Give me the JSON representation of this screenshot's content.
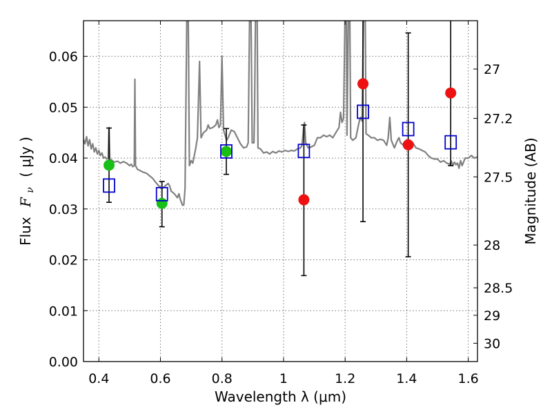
{
  "chart_data": {
    "type": "scatter",
    "xlabel": "Wavelength  λ (μm)",
    "ylabel": "Flux  F_ν  ( μJy )",
    "ylabel_prefix": "Flux",
    "ylabel_symbol": "F",
    "ylabel_subscript": "ν",
    "ylabel_unit": "( μJy )",
    "y2label": "Magnitude (AB)",
    "xlim": [
      0.35,
      1.63
    ],
    "ylim": [
      0.0,
      0.067
    ],
    "grid": true,
    "xticks": [
      0.4,
      0.6,
      0.8,
      1.0,
      1.2,
      1.4,
      1.6
    ],
    "xtick_labels": [
      "0.4",
      "0.6",
      "0.8",
      "1",
      "1.2",
      "1.4",
      "1.6"
    ],
    "yticks": [
      0.0,
      0.01,
      0.02,
      0.03,
      0.04,
      0.05,
      0.06
    ],
    "ytick_labels": [
      "0.00",
      "0.01",
      "0.02",
      "0.03",
      "0.04",
      "0.05",
      "0.06"
    ],
    "y2ticks": [
      {
        "label": "27",
        "flux": 0.0575
      },
      {
        "label": "27.2",
        "flux": 0.0478
      },
      {
        "label": "27.5",
        "flux": 0.0363
      },
      {
        "label": "28",
        "flux": 0.0229
      },
      {
        "label": "28.5",
        "flux": 0.0145
      },
      {
        "label": "29",
        "flux": 0.0091
      },
      {
        "label": "30",
        "flux": 0.0036
      }
    ],
    "model_spectrum": {
      "name": "model SED",
      "color": "#808080",
      "points": [
        [
          0.35,
          0.0437
        ],
        [
          0.355,
          0.0428
        ],
        [
          0.36,
          0.0442
        ],
        [
          0.365,
          0.0424
        ],
        [
          0.37,
          0.0436
        ],
        [
          0.375,
          0.0418
        ],
        [
          0.38,
          0.0428
        ],
        [
          0.385,
          0.0412
        ],
        [
          0.39,
          0.042
        ],
        [
          0.395,
          0.0408
        ],
        [
          0.4,
          0.0415
        ],
        [
          0.405,
          0.0405
        ],
        [
          0.41,
          0.041
        ],
        [
          0.415,
          0.04
        ],
        [
          0.42,
          0.0402
        ],
        [
          0.425,
          0.0398
        ],
        [
          0.43,
          0.04
        ],
        [
          0.433,
          0.046
        ],
        [
          0.436,
          0.0395
        ],
        [
          0.44,
          0.0397
        ],
        [
          0.45,
          0.0392
        ],
        [
          0.46,
          0.0394
        ],
        [
          0.47,
          0.039
        ],
        [
          0.48,
          0.0393
        ],
        [
          0.49,
          0.039
        ],
        [
          0.5,
          0.0385
        ],
        [
          0.505,
          0.0388
        ],
        [
          0.51,
          0.0383
        ],
        [
          0.515,
          0.0385
        ],
        [
          0.517,
          0.0555
        ],
        [
          0.519,
          0.0385
        ],
        [
          0.525,
          0.0378
        ],
        [
          0.535,
          0.0375
        ],
        [
          0.545,
          0.0372
        ],
        [
          0.555,
          0.037
        ],
        [
          0.565,
          0.0365
        ],
        [
          0.575,
          0.036
        ],
        [
          0.585,
          0.0352
        ],
        [
          0.595,
          0.0345
        ],
        [
          0.605,
          0.034
        ],
        [
          0.615,
          0.0345
        ],
        [
          0.625,
          0.035
        ],
        [
          0.63,
          0.0345
        ],
        [
          0.635,
          0.0335
        ],
        [
          0.645,
          0.033
        ],
        [
          0.655,
          0.0322
        ],
        [
          0.66,
          0.033
        ],
        [
          0.665,
          0.0318
        ],
        [
          0.672,
          0.0307
        ],
        [
          0.676,
          0.0308
        ],
        [
          0.68,
          0.034
        ],
        [
          0.686,
          0.07
        ],
        [
          0.69,
          0.07
        ],
        [
          0.694,
          0.0385
        ],
        [
          0.7,
          0.0395
        ],
        [
          0.705,
          0.039
        ],
        [
          0.71,
          0.0405
        ],
        [
          0.715,
          0.042
        ],
        [
          0.72,
          0.044
        ],
        [
          0.727,
          0.059
        ],
        [
          0.732,
          0.044
        ],
        [
          0.74,
          0.045
        ],
        [
          0.75,
          0.0455
        ],
        [
          0.755,
          0.0465
        ],
        [
          0.76,
          0.0458
        ],
        [
          0.77,
          0.046
        ],
        [
          0.78,
          0.0465
        ],
        [
          0.785,
          0.0475
        ],
        [
          0.79,
          0.046
        ],
        [
          0.795,
          0.0465
        ],
        [
          0.8,
          0.06
        ],
        [
          0.805,
          0.0455
        ],
        [
          0.81,
          0.0445
        ],
        [
          0.815,
          0.0435
        ],
        [
          0.82,
          0.044
        ],
        [
          0.83,
          0.0455
        ],
        [
          0.84,
          0.0452
        ],
        [
          0.85,
          0.044
        ],
        [
          0.86,
          0.0428
        ],
        [
          0.87,
          0.042
        ],
        [
          0.88,
          0.0422
        ],
        [
          0.885,
          0.043
        ],
        [
          0.89,
          0.07
        ],
        [
          0.894,
          0.07
        ],
        [
          0.898,
          0.043
        ],
        [
          0.904,
          0.043
        ],
        [
          0.906,
          0.05
        ],
        [
          0.909,
          0.07
        ],
        [
          0.914,
          0.07
        ],
        [
          0.917,
          0.042
        ],
        [
          0.925,
          0.0418
        ],
        [
          0.935,
          0.041
        ],
        [
          0.945,
          0.0412
        ],
        [
          0.955,
          0.0408
        ],
        [
          0.965,
          0.0413
        ],
        [
          0.975,
          0.041
        ],
        [
          0.985,
          0.0414
        ],
        [
          0.995,
          0.0412
        ],
        [
          1.005,
          0.0415
        ],
        [
          1.015,
          0.0413
        ],
        [
          1.025,
          0.0415
        ],
        [
          1.035,
          0.0414
        ],
        [
          1.045,
          0.0418
        ],
        [
          1.055,
          0.042
        ],
        [
          1.06,
          0.0425
        ],
        [
          1.065,
          0.046
        ],
        [
          1.068,
          0.047
        ],
        [
          1.072,
          0.043
        ],
        [
          1.08,
          0.042
        ],
        [
          1.09,
          0.0422
        ],
        [
          1.1,
          0.0425
        ],
        [
          1.11,
          0.044
        ],
        [
          1.12,
          0.044
        ],
        [
          1.13,
          0.0445
        ],
        [
          1.14,
          0.0442
        ],
        [
          1.15,
          0.0445
        ],
        [
          1.16,
          0.044
        ],
        [
          1.17,
          0.045
        ],
        [
          1.18,
          0.046
        ],
        [
          1.185,
          0.049
        ],
        [
          1.19,
          0.047
        ],
        [
          1.195,
          0.0478
        ],
        [
          1.2,
          0.07
        ],
        [
          1.204,
          0.07
        ],
        [
          1.206,
          0.0445
        ],
        [
          1.211,
          0.07
        ],
        [
          1.215,
          0.07
        ],
        [
          1.218,
          0.044
        ],
        [
          1.225,
          0.0435
        ],
        [
          1.235,
          0.044
        ],
        [
          1.245,
          0.047
        ],
        [
          1.25,
          0.048
        ],
        [
          1.255,
          0.0473
        ],
        [
          1.26,
          0.07
        ],
        [
          1.265,
          0.07
        ],
        [
          1.268,
          0.0448
        ],
        [
          1.275,
          0.0445
        ],
        [
          1.285,
          0.044
        ],
        [
          1.295,
          0.044
        ],
        [
          1.305,
          0.0435
        ],
        [
          1.315,
          0.0437
        ],
        [
          1.325,
          0.0435
        ],
        [
          1.335,
          0.0425
        ],
        [
          1.34,
          0.044
        ],
        [
          1.345,
          0.048
        ],
        [
          1.35,
          0.0435
        ],
        [
          1.36,
          0.042
        ],
        [
          1.37,
          0.0435
        ],
        [
          1.375,
          0.044
        ],
        [
          1.38,
          0.043
        ],
        [
          1.39,
          0.0425
        ],
        [
          1.4,
          0.043
        ],
        [
          1.41,
          0.0435
        ],
        [
          1.42,
          0.043
        ],
        [
          1.43,
          0.042
        ],
        [
          1.44,
          0.0418
        ],
        [
          1.45,
          0.0415
        ],
        [
          1.46,
          0.0412
        ],
        [
          1.47,
          0.0405
        ],
        [
          1.48,
          0.04
        ],
        [
          1.49,
          0.0398
        ],
        [
          1.5,
          0.0398
        ],
        [
          1.51,
          0.0392
        ],
        [
          1.52,
          0.0395
        ],
        [
          1.53,
          0.039
        ],
        [
          1.54,
          0.0388
        ],
        [
          1.545,
          0.0394
        ],
        [
          1.55,
          0.0385
        ],
        [
          1.555,
          0.0392
        ],
        [
          1.56,
          0.0387
        ],
        [
          1.565,
          0.039
        ],
        [
          1.57,
          0.038
        ],
        [
          1.575,
          0.0395
        ],
        [
          1.58,
          0.0385
        ],
        [
          1.59,
          0.04
        ],
        [
          1.6,
          0.04
        ],
        [
          1.61,
          0.0405
        ],
        [
          1.62,
          0.04
        ],
        [
          1.63,
          0.0402
        ]
      ]
    },
    "series": [
      {
        "name": "observed (ground-based)",
        "marker": "circle",
        "color": "#17bf17",
        "points": [
          {
            "x": 0.433,
            "y": 0.0386,
            "yerr_low": 0.0313,
            "yerr_high": 0.0459
          },
          {
            "x": 0.605,
            "y": 0.0311,
            "yerr_low": 0.0265,
            "yerr_high": 0.0354
          },
          {
            "x": 0.814,
            "y": 0.0413,
            "yerr_low": 0.0368,
            "yerr_high": 0.0458
          }
        ]
      },
      {
        "name": "observed (near-IR)",
        "marker": "circle",
        "color": "#ee1111",
        "points": [
          {
            "x": 1.066,
            "y": 0.0318,
            "yerr_low": 0.0169,
            "yerr_high": 0.0465
          },
          {
            "x": 1.258,
            "y": 0.0546,
            "yerr_low": 0.0275,
            "yerr_high": 0.07
          },
          {
            "x": 1.405,
            "y": 0.0426,
            "yerr_low": 0.0206,
            "yerr_high": 0.0646
          },
          {
            "x": 1.543,
            "y": 0.0528,
            "yerr_low": 0.0385,
            "yerr_high": 0.07
          }
        ]
      },
      {
        "name": "model synthetic photometry",
        "marker": "square-open",
        "color": "#0000cc",
        "points": [
          {
            "x": 0.433,
            "y": 0.0346
          },
          {
            "x": 0.605,
            "y": 0.0329
          },
          {
            "x": 0.814,
            "y": 0.0413
          },
          {
            "x": 1.066,
            "y": 0.0414
          },
          {
            "x": 1.258,
            "y": 0.0491
          },
          {
            "x": 1.405,
            "y": 0.0457
          },
          {
            "x": 1.543,
            "y": 0.0431
          }
        ]
      }
    ]
  }
}
